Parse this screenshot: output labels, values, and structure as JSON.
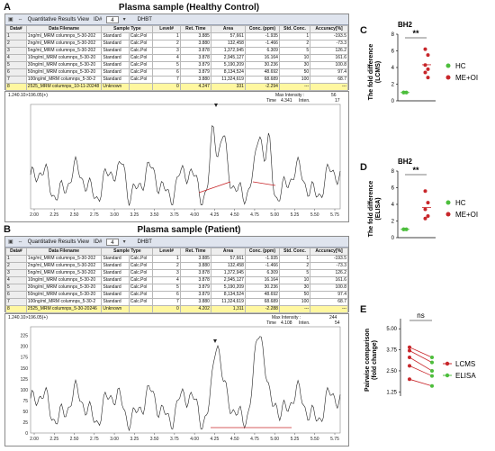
{
  "panelA": {
    "letter": "A",
    "title": "Plasma sample (Healthy Control)",
    "window": {
      "title": "Quantitative Results View",
      "id_label": "ID#",
      "id_value": "4",
      "method": "DHBT"
    },
    "columns": [
      "Data#",
      "Data Filename",
      "Sample Type",
      "Level#",
      "Ret. Time",
      "Area",
      "Conc. (ppm)",
      "Std. Conc.",
      "Accuracy[%]"
    ],
    "rows": [
      [
        "1",
        "1ng/ml_MRM columnps_5-30-202",
        "Standard",
        "Calc.Pol",
        "1",
        "3.885",
        "57,661",
        "-1.935",
        "1",
        "-193.5"
      ],
      [
        "2",
        "2ng/ml_MRM columnps_5-30-202",
        "Standard",
        "Calc.Pol",
        "2",
        "3.880",
        "132,458",
        "-1.466",
        "2",
        "-73.3"
      ],
      [
        "3",
        "5ng/ml_MRM columnps_5-30-202",
        "Standard",
        "Calc.Pol",
        "3",
        "3.878",
        "1,372,945",
        "6.309",
        "5",
        "126.2"
      ],
      [
        "4",
        "10ng/ml_MRM columnps_5-30-20",
        "Standard",
        "Calc.Pol",
        "4",
        "3.878",
        "2,945,127",
        "16.164",
        "10",
        "161.6"
      ],
      [
        "5",
        "30ng/ml_MRM columnps_5-30-20",
        "Standard",
        "Calc.Pol",
        "5",
        "3.879",
        "5,190,209",
        "30.236",
        "30",
        "100.8"
      ],
      [
        "6",
        "50ng/ml_MRM columnps_5-30-20",
        "Standard",
        "Calc.Pol",
        "6",
        "3.879",
        "8,134,524",
        "48.692",
        "50",
        "97.4"
      ],
      [
        "7",
        "100ng/ml_MRM columnps_5-30-2",
        "Standard",
        "Calc.Pol",
        "7",
        "3.880",
        "11,324,619",
        "68.689",
        "100",
        "68.7"
      ],
      [
        "8",
        "2525_MRM columnps_10-11-20248",
        "Unknown",
        "",
        "0",
        "4.247",
        "331",
        "-2.294",
        "---",
        "---"
      ]
    ],
    "chrom": {
      "mrm": "1.240.10>196.05(+)",
      "max_intensity_label": "Max Intensity :",
      "max_intensity": "56",
      "time_label": "Time",
      "time": "4.341",
      "inten_label": "Inten.",
      "inten": "17",
      "xticks": [
        "2.00",
        "2.25",
        "2.50",
        "2.75",
        "3.00",
        "3.25",
        "3.50",
        "3.75",
        "4.00",
        "4.25",
        "4.50",
        "4.75",
        "5.00",
        "5.25",
        "5.50",
        "5.75"
      ]
    }
  },
  "panelB": {
    "letter": "B",
    "title": "Plasma sample (Patient)",
    "window": {
      "title": "Quantitative Results View",
      "id_label": "ID#",
      "id_value": "4",
      "method": "DHBT"
    },
    "rows": [
      [
        "1",
        "1ng/ml_MRM columnps_5-30-202",
        "Standard",
        "Calc.Pol",
        "1",
        "3.885",
        "57,661",
        "-1.935",
        "1",
        "-193.5"
      ],
      [
        "2",
        "2ng/ml_MRM columnps_5-30-202",
        "Standard",
        "Calc.Pol",
        "2",
        "3.880",
        "132,458",
        "-1.466",
        "2",
        "-73.3"
      ],
      [
        "3",
        "5ng/ml_MRM columnps_5-30-202",
        "Standard",
        "Calc.Pol",
        "3",
        "3.878",
        "1,372,945",
        "6.309",
        "5",
        "126.2"
      ],
      [
        "4",
        "10ng/ml_MRM columnps_5-30-20",
        "Standard",
        "Calc.Pol",
        "4",
        "3.878",
        "2,945,127",
        "16.164",
        "10",
        "161.6"
      ],
      [
        "5",
        "30ng/ml_MRM columnps_5-30-20",
        "Standard",
        "Calc.Pol",
        "5",
        "3.879",
        "5,190,209",
        "30.236",
        "30",
        "100.8"
      ],
      [
        "6",
        "50ng/ml_MRM columnps_5-30-20",
        "Standard",
        "Calc.Pol",
        "6",
        "3.879",
        "8,134,524",
        "48.692",
        "50",
        "97.4"
      ],
      [
        "7",
        "100ng/ml_MRM columnps_5-30-2",
        "Standard",
        "Calc.Pol",
        "7",
        "3.880",
        "11,324,619",
        "68.689",
        "100",
        "68.7"
      ],
      [
        "8",
        "2525_MRM columnps_5-30-20246",
        "Unknown",
        "",
        "0",
        "4.202",
        "1,311",
        "-2.288",
        "---",
        "---"
      ]
    ],
    "chrom": {
      "mrm": "1.240.10>196.05(+)",
      "max_intensity_label": "Max Intensity :",
      "max_intensity": "244",
      "time_label": "Time",
      "time": "4.108",
      "inten_label": "Inten.",
      "inten": "54",
      "yticks": [
        "0",
        "25",
        "50",
        "75",
        "100",
        "125",
        "150",
        "175",
        "200",
        "225"
      ],
      "xticks": [
        "2.00",
        "2.25",
        "2.50",
        "2.75",
        "3.00",
        "3.25",
        "3.50",
        "3.75",
        "4.00",
        "4.25",
        "4.50",
        "4.75",
        "5.00",
        "5.25",
        "5.50",
        "5.75"
      ]
    }
  },
  "panelC": {
    "letter": "C",
    "title": "BH2",
    "ylabel_line1": "The fold difference",
    "ylabel_line2": "(LCMS)",
    "yticks": [
      "0",
      "2",
      "4",
      "6",
      "8"
    ],
    "signif": "**",
    "legend": [
      {
        "label": "HC",
        "color": "#4cbe3c"
      },
      {
        "label": "ME+OI",
        "color": "#c8262a"
      }
    ]
  },
  "panelD": {
    "letter": "D",
    "title": "BH2",
    "ylabel_line1": "The fold difference",
    "ylabel_line2": "(ELISA)",
    "yticks": [
      "0",
      "2",
      "4",
      "6",
      "8"
    ],
    "signif": "**",
    "legend": [
      {
        "label": "HC",
        "color": "#4cbe3c"
      },
      {
        "label": "ME+OI",
        "color": "#c8262a"
      }
    ]
  },
  "panelE": {
    "letter": "E",
    "ylabel_line1": "Pairwise comparison",
    "ylabel_line2": "(fold change)",
    "yticks": [
      "1.25",
      "2.50",
      "3.75",
      "5.00"
    ],
    "signif": "ns",
    "legend": [
      {
        "label": "LCMS",
        "color": "#c8262a"
      },
      {
        "label": "ELISA",
        "color": "#4cbe3c"
      }
    ]
  },
  "chart_data": [
    {
      "type": "scatter",
      "title": "BH2",
      "ylabel": "The fold difference (LCMS)",
      "ylim": [
        0,
        8
      ],
      "series": [
        {
          "name": "HC",
          "values": [
            1.0,
            1.0,
            1.0,
            1.0,
            1.0
          ]
        },
        {
          "name": "ME+OI",
          "values": [
            6.2,
            5.5,
            4.3,
            3.8,
            3.4,
            2.8
          ]
        }
      ]
    },
    {
      "type": "scatter",
      "title": "BH2",
      "ylabel": "The fold difference (ELISA)",
      "ylim": [
        0,
        8
      ],
      "series": [
        {
          "name": "HC",
          "values": [
            1.0,
            1.0,
            1.0,
            1.0,
            1.0
          ]
        },
        {
          "name": "ME+OI",
          "values": [
            5.6,
            4.2,
            3.4,
            2.6,
            2.3
          ]
        }
      ]
    },
    {
      "type": "line",
      "ylabel": "Pairwise comparison (fold change)",
      "ylim": [
        1,
        5.6
      ],
      "series": [
        {
          "name": "LCMS",
          "values": [
            3.9,
            3.7,
            3.3,
            2.8,
            2.0
          ]
        },
        {
          "name": "ELISA",
          "values": [
            3.3,
            3.0,
            2.5,
            2.2,
            1.6
          ]
        }
      ]
    }
  ]
}
